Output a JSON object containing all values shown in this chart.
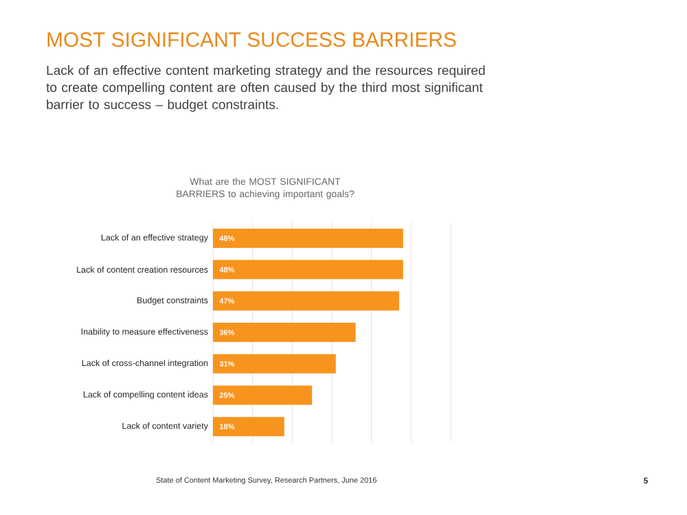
{
  "chart_data": {
    "type": "bar",
    "orientation": "horizontal",
    "title": "MOST SIGNIFICANT SUCCESS BARRIERS",
    "subtitle": "Lack of an effective content marketing strategy and the resources required to create compelling content are often caused by the third most significant barrier to success – budget constraints.",
    "annotations": [
      "What are the MOST SIGNIFICANT BARRIERS to achieving important goals?",
      "State of Content Marketing Survey, Research Partners, June 2016",
      "5"
    ],
    "categories": [
      "Lack of an effective strategy",
      "Lack of content creation resources",
      "Budget constraints",
      "Inability to measure effectiveness",
      "Lack of cross-channel integration",
      "Lack of compelling content ideas",
      "Lack of content variety"
    ],
    "values": [
      48,
      48,
      47,
      36,
      31,
      25,
      18
    ],
    "value_labels": [
      "48%",
      "48%",
      "47%",
      "36%",
      "31%",
      "25%",
      "18%"
    ],
    "color": "#f7941d",
    "xlim": [
      0,
      60
    ],
    "xticks": [
      {
        "value": 0,
        "label": null
      },
      {
        "value": 10,
        "label": null
      },
      {
        "value": 20,
        "label": null
      },
      {
        "value": 30,
        "label": null
      },
      {
        "value": 40,
        "label": null
      },
      {
        "value": 50,
        "label": null
      },
      {
        "value": 60,
        "label": null
      }
    ],
    "grid": "x",
    "tick_labels": "y"
  }
}
